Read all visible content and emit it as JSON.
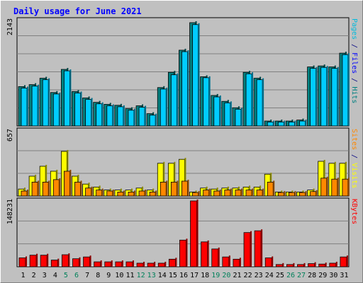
{
  "chart_data": [
    {
      "type": "bar",
      "title": "Daily usage for June 2021",
      "ylabel_parts": [
        {
          "text": "Pages",
          "color": "#00bbdd"
        },
        {
          "text": " / ",
          "color": "#000080"
        },
        {
          "text": "Files",
          "color": "#0000ff"
        },
        {
          "text": " / ",
          "color": "#000080"
        },
        {
          "text": "Hits",
          "color": "#008080"
        }
      ],
      "ymax_label": "2143",
      "ylim": [
        0,
        2143
      ],
      "categories": [
        "1",
        "2",
        "3",
        "4",
        "5",
        "6",
        "7",
        "8",
        "9",
        "10",
        "11",
        "12",
        "13",
        "14",
        "15",
        "16",
        "17",
        "18",
        "19",
        "20",
        "21",
        "22",
        "23",
        "24",
        "25",
        "26",
        "27",
        "28",
        "29",
        "30",
        "31"
      ],
      "weekend_days": [
        "5",
        "6",
        "12",
        "13",
        "19",
        "20",
        "26",
        "27"
      ],
      "series": [
        {
          "name": "Hits",
          "color": "#008080",
          "values": [
            800,
            840,
            970,
            680,
            1150,
            700,
            570,
            480,
            440,
            420,
            350,
            410,
            250,
            780,
            1090,
            1540,
            2100,
            1000,
            620,
            500,
            370,
            1090,
            970,
            100,
            100,
            100,
            120,
            1200,
            1220,
            1200,
            1480
          ]
        },
        {
          "name": "Files",
          "color": "#00ccff",
          "values": [
            770,
            810,
            940,
            650,
            1120,
            670,
            540,
            450,
            410,
            390,
            320,
            380,
            220,
            750,
            1040,
            1510,
            2060,
            980,
            590,
            470,
            340,
            1060,
            940,
            80,
            80,
            80,
            100,
            1170,
            1190,
            1170,
            1450
          ]
        }
      ]
    },
    {
      "type": "bar",
      "ylabel_parts": [
        {
          "text": "Sites",
          "color": "#ff8800"
        },
        {
          "text": " / ",
          "color": "#000080"
        },
        {
          "text": "Visits",
          "color": "#ffff00"
        }
      ],
      "ymax_label": "657",
      "ylim": [
        0,
        657
      ],
      "categories": [
        "1",
        "2",
        "3",
        "4",
        "5",
        "6",
        "7",
        "8",
        "9",
        "10",
        "11",
        "12",
        "13",
        "14",
        "15",
        "16",
        "17",
        "18",
        "19",
        "20",
        "21",
        "22",
        "23",
        "24",
        "25",
        "26",
        "27",
        "28",
        "29",
        "30",
        "31"
      ],
      "series": [
        {
          "name": "Visits",
          "color": "#ffff00",
          "values": [
            70,
            200,
            300,
            250,
            450,
            200,
            120,
            90,
            60,
            60,
            60,
            80,
            60,
            330,
            330,
            370,
            40,
            80,
            70,
            80,
            80,
            90,
            90,
            220,
            40,
            40,
            40,
            60,
            350,
            330,
            330
          ]
        },
        {
          "name": "Sites",
          "color": "#ff8800",
          "values": [
            50,
            140,
            140,
            165,
            250,
            140,
            80,
            60,
            50,
            40,
            40,
            50,
            40,
            140,
            140,
            150,
            35,
            60,
            50,
            60,
            60,
            60,
            60,
            140,
            35,
            35,
            35,
            45,
            180,
            170,
            170
          ]
        }
      ]
    },
    {
      "type": "bar",
      "ylabel_parts": [
        {
          "text": "KBytes",
          "color": "#ff0000"
        }
      ],
      "ymax_label": "148231",
      "ylim": [
        0,
        148231
      ],
      "categories": [
        "1",
        "2",
        "3",
        "4",
        "5",
        "6",
        "7",
        "8",
        "9",
        "10",
        "11",
        "12",
        "13",
        "14",
        "15",
        "16",
        "17",
        "18",
        "19",
        "20",
        "21",
        "22",
        "23",
        "24",
        "25",
        "26",
        "27",
        "28",
        "29",
        "30",
        "31"
      ],
      "series": [
        {
          "name": "KBytes",
          "color": "#ff0000",
          "values": [
            20000,
            26000,
            26000,
            15000,
            27000,
            18000,
            22000,
            11000,
            11000,
            11000,
            11000,
            8000,
            8000,
            8000,
            17000,
            60000,
            148231,
            56000,
            40000,
            22000,
            17000,
            77000,
            81000,
            20000,
            5000,
            5000,
            5000,
            7000,
            6000,
            8000,
            22000
          ]
        }
      ]
    }
  ]
}
